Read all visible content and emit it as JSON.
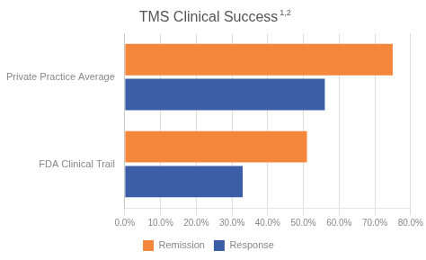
{
  "chart_data": {
    "type": "bar",
    "orientation": "horizontal",
    "title": "TMS Clinical Success",
    "annotations": [
      "1,2"
    ],
    "categories": [
      "Private Practice Average",
      "FDA Clinical Trail"
    ],
    "series": [
      {
        "name": "Remission",
        "color": "#F4873C",
        "values": [
          75,
          51
        ]
      },
      {
        "name": "Response",
        "color": "#3B5EA6",
        "values": [
          56,
          33
        ]
      }
    ],
    "xlim": [
      0,
      80
    ],
    "xticks": [
      {
        "value": 0,
        "label": "0.0%"
      },
      {
        "value": 10,
        "label": "10.0%"
      },
      {
        "value": 20,
        "label": "20.0%"
      },
      {
        "value": 30,
        "label": "30.0%"
      },
      {
        "value": 40,
        "label": "40.0%"
      },
      {
        "value": 50,
        "label": "50.0%"
      },
      {
        "value": 60,
        "label": "60.0%"
      },
      {
        "value": 70,
        "label": "70.0%"
      },
      {
        "value": 80,
        "label": "80.0%"
      }
    ],
    "grid": true,
    "legend": "bottom"
  }
}
